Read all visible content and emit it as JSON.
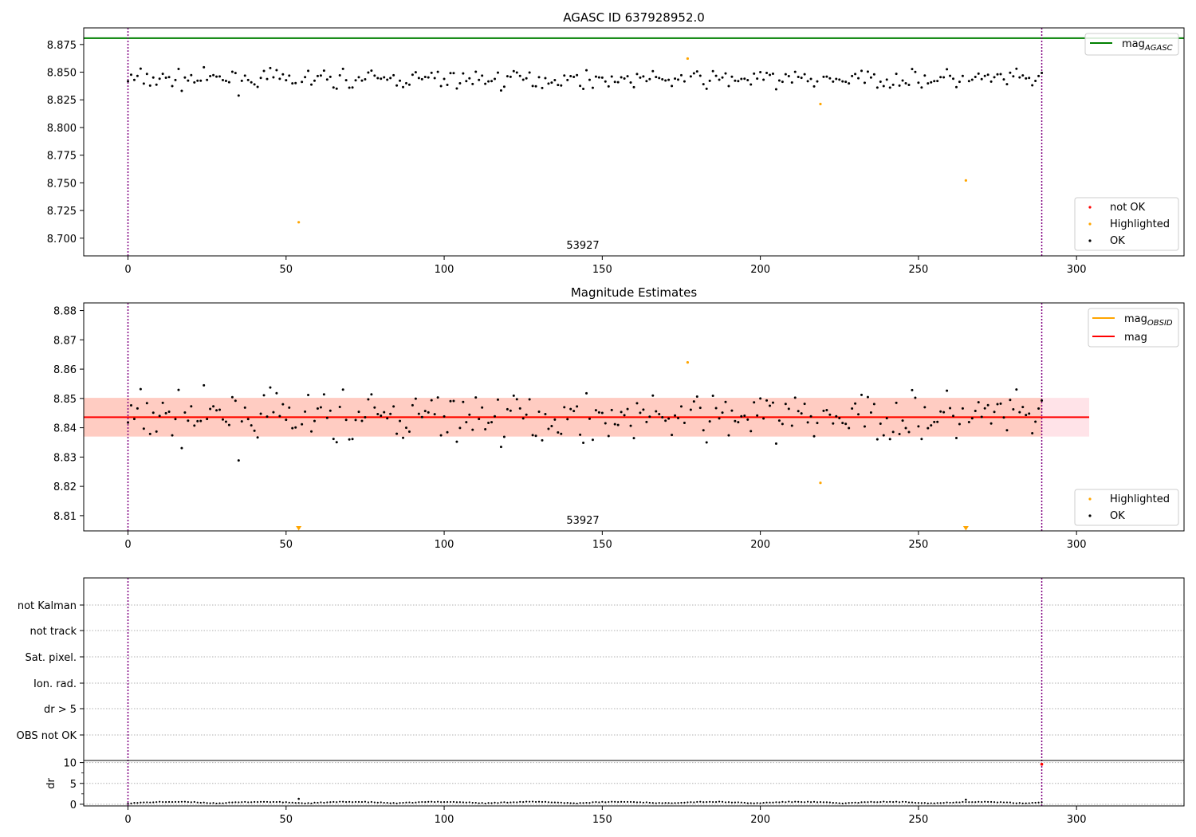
{
  "chart_data": [
    {
      "type": "scatter",
      "title": "AGASC ID 637928952.0",
      "annotation": "53927",
      "xlim": [
        -14,
        334
      ],
      "ylim": [
        8.684,
        8.89
      ],
      "xticks": [
        0,
        50,
        100,
        150,
        200,
        250,
        300
      ],
      "xtick_labels": [
        "0",
        "50",
        "100",
        "150",
        "200",
        "250",
        "300"
      ],
      "yticks": [
        8.7,
        8.725,
        8.75,
        8.775,
        8.8,
        8.825,
        8.85,
        8.875
      ],
      "ytick_labels": [
        "8.700",
        "8.725",
        "8.750",
        "8.775",
        "8.800",
        "8.825",
        "8.850",
        "8.875"
      ],
      "mag_agasc": 8.8807,
      "obsid_start": 0,
      "obsid_end": 289,
      "line_legend": [
        {
          "label": "mag",
          "sub": "AGASC",
          "color": "#008000"
        }
      ],
      "marker_legend": [
        {
          "label": "not OK",
          "color": "#ff0000"
        },
        {
          "label": "Highlighted",
          "color": "#ffa500"
        },
        {
          "label": "OK",
          "color": "#000000"
        }
      ],
      "highlighted": {
        "x": [
          54,
          177,
          219,
          265
        ],
        "y": [
          8.7144,
          8.8623,
          8.8212,
          8.7522
        ]
      }
    },
    {
      "type": "scatter",
      "title": "Magnitude Estimates",
      "annotation": "53927",
      "xlim": [
        -14,
        334
      ],
      "ylim": [
        8.8048,
        8.8826
      ],
      "xticks": [
        0,
        50,
        100,
        150,
        200,
        250,
        300
      ],
      "xtick_labels": [
        "0",
        "50",
        "100",
        "150",
        "200",
        "250",
        "300"
      ],
      "yticks": [
        8.81,
        8.82,
        8.83,
        8.84,
        8.85,
        8.86,
        8.87,
        8.88
      ],
      "ytick_labels": [
        "8.81",
        "8.82",
        "8.83",
        "8.84",
        "8.85",
        "8.86",
        "8.87",
        "8.88"
      ],
      "mag": 8.8436,
      "mag_obsid": 8.8436,
      "band_outer": [
        8.837,
        8.8502
      ],
      "band_inner": [
        8.837,
        8.8502
      ],
      "band_xrange": [
        -14,
        304
      ],
      "line_legend": [
        {
          "label": "mag",
          "sub": "OBSID",
          "color": "#ffa500"
        },
        {
          "label": "mag",
          "sub": "",
          "color": "#ff0000"
        }
      ],
      "marker_legend": [
        {
          "label": "Highlighted",
          "color": "#ffa500"
        },
        {
          "label": "OK",
          "color": "#000000"
        }
      ],
      "highlighted": {
        "x": [
          177,
          219
        ],
        "y": [
          8.8623,
          8.8212
        ]
      },
      "offscale_low_x": [
        54,
        265
      ]
    },
    {
      "type": "scatter",
      "flag_labels": [
        "not Kalman",
        "not track",
        "Sat. pixel.",
        "Ion. rad.",
        "dr > 5",
        "OBS not OK"
      ],
      "xlim": [
        -14,
        334
      ],
      "xticks": [
        0,
        50,
        100,
        150,
        200,
        250,
        300
      ],
      "xtick_labels": [
        "0",
        "50",
        "100",
        "150",
        "200",
        "250",
        "300"
      ],
      "dr_ylabel": "dr",
      "dr_ylim": [
        -0.4,
        10.5
      ],
      "dr_yticks": [
        0,
        5,
        10
      ],
      "dr_ytick_labels": [
        "0",
        "5",
        "10"
      ],
      "dr_outliers": {
        "x": [
          54,
          265
        ],
        "y": [
          1.3,
          1.1
        ]
      },
      "dr_red": {
        "x": [
          289
        ],
        "y": [
          9.6
        ]
      }
    }
  ],
  "colors": {
    "ok": "#000000",
    "highlighted": "#ffa500",
    "not_ok": "#ff0000",
    "agasc_line": "#008000",
    "mag_line": "#ff0000",
    "obsid_line": "#ffa500",
    "boundary": "#800080",
    "band_outer": "#ffc0cb",
    "band_inner": "#ffa07a"
  }
}
